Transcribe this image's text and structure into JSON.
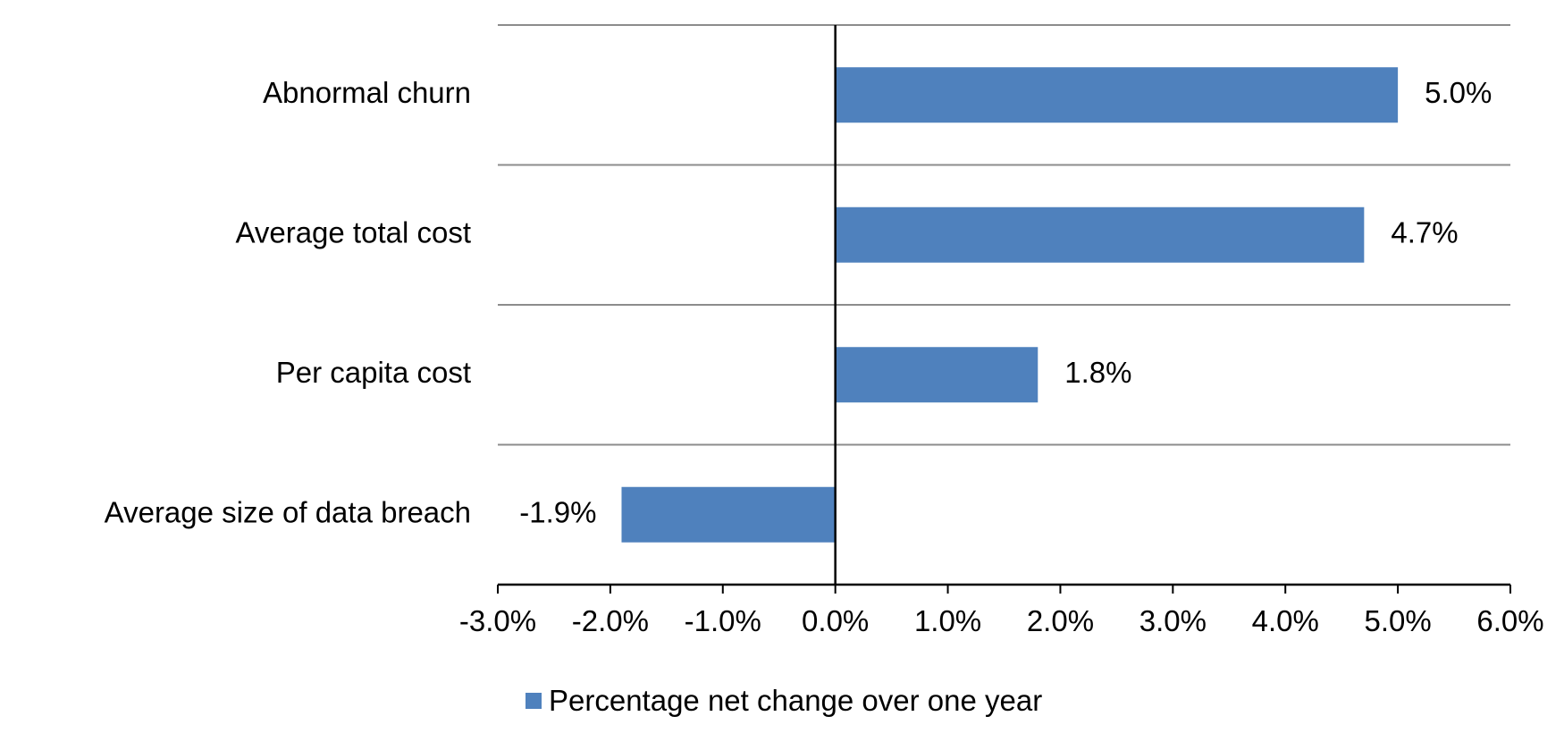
{
  "chart_data": {
    "type": "bar",
    "orientation": "horizontal",
    "categories": [
      "Abnormal churn",
      "Average total cost",
      "Per capita cost",
      "Average size of data breach"
    ],
    "series": [
      {
        "name": "Percentage net change over one year",
        "values": [
          5.0,
          4.7,
          1.8,
          -1.9
        ],
        "color": "#4f81bd"
      }
    ],
    "data_labels": [
      "5.0%",
      "4.7%",
      "1.8%",
      "-1.9%"
    ],
    "xlim": [
      -3.0,
      6.0
    ],
    "x_ticks": [
      -3,
      -2,
      -1,
      0,
      1,
      2,
      3,
      4,
      5,
      6
    ],
    "x_tick_labels": [
      "-3.0%",
      "-2.0%",
      "-1.0%",
      "0.0%",
      "1.0%",
      "2.0%",
      "3.0%",
      "4.0%",
      "5.0%",
      "6.0%"
    ],
    "grid": true,
    "legend_position": "bottom",
    "title": "",
    "xlabel": "",
    "ylabel": ""
  }
}
